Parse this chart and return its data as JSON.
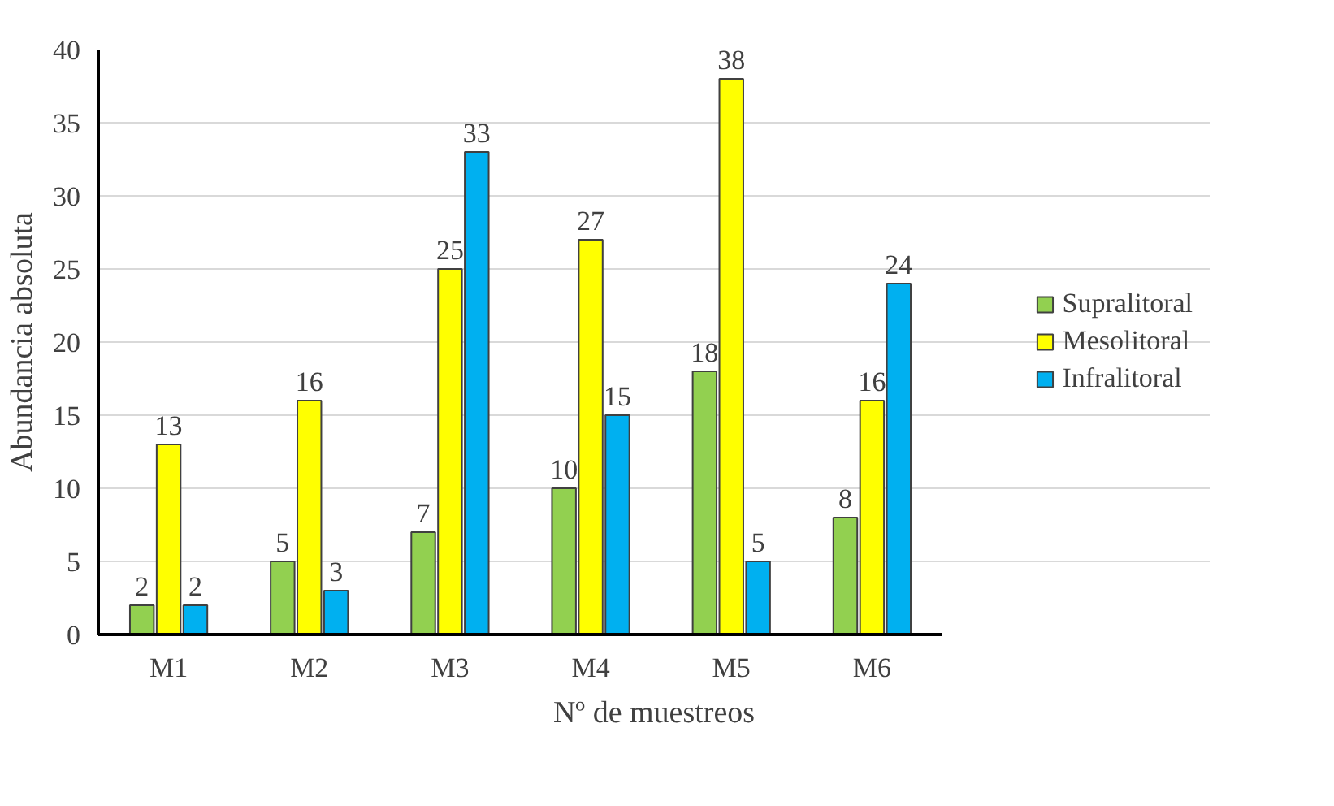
{
  "chart_data": {
    "type": "bar",
    "xlabel": "Nº de muestreos",
    "ylabel": "Abundancia absoluta",
    "categories": [
      "M1",
      "M2",
      "M3",
      "M4",
      "M5",
      "M6"
    ],
    "series": [
      {
        "name": "Supralitoral",
        "color": "#92d050",
        "values": [
          2,
          5,
          7,
          10,
          18,
          8
        ]
      },
      {
        "name": "Mesolitoral",
        "color": "#ffff00",
        "values": [
          13,
          16,
          25,
          27,
          38,
          16
        ]
      },
      {
        "name": "Infralitoral",
        "color": "#00b0f0",
        "values": [
          2,
          3,
          33,
          15,
          5,
          24
        ]
      }
    ],
    "ylim": [
      0,
      40
    ],
    "yticks": [
      0,
      5,
      10,
      15,
      20,
      25,
      30,
      35,
      40
    ],
    "grid": "y",
    "legend": "right",
    "data_labels": true
  }
}
